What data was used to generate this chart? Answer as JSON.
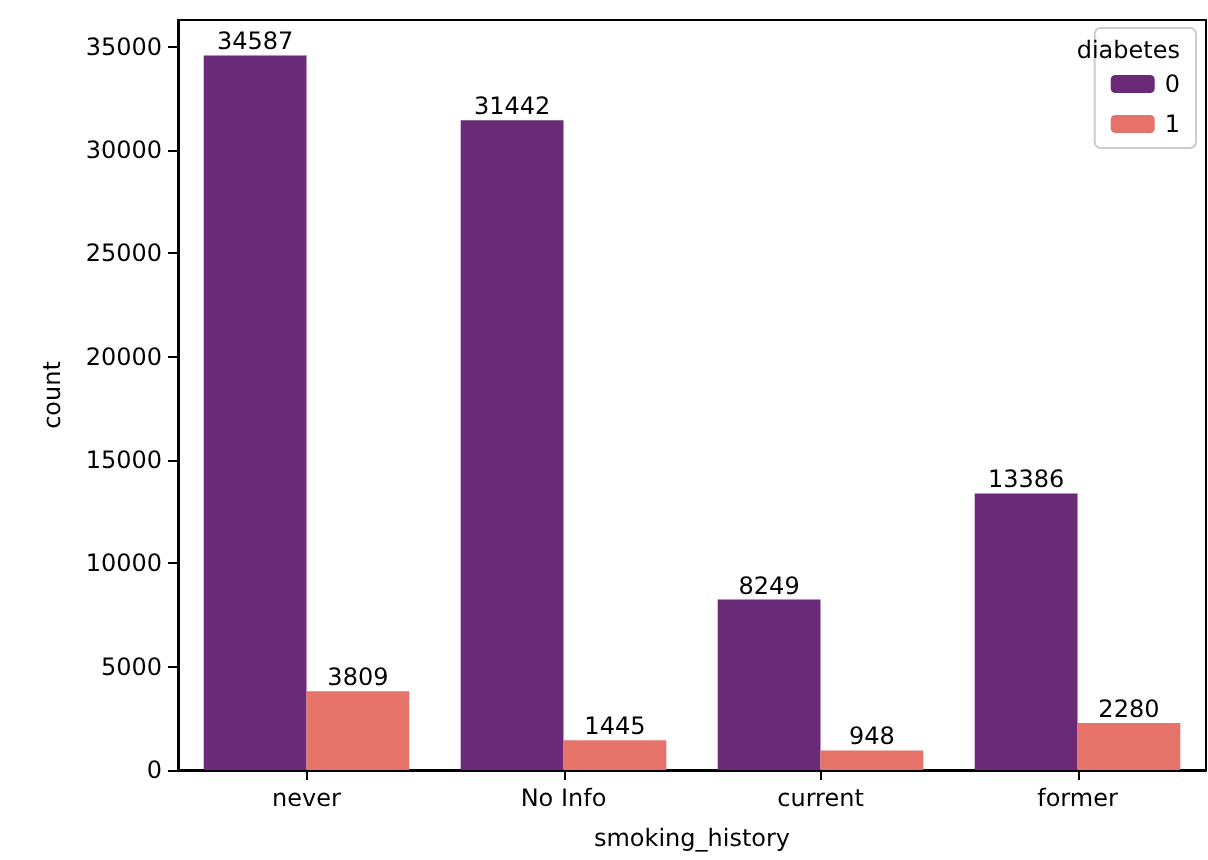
{
  "chart_data": {
    "type": "bar",
    "xlabel": "smoking_history",
    "ylabel": "count",
    "legend_title": "diabetes",
    "categories": [
      "never",
      "No Info",
      "current",
      "former"
    ],
    "series": [
      {
        "name": "0",
        "color": "#6a2a78",
        "values": [
          34587,
          31442,
          8249,
          13386
        ]
      },
      {
        "name": "1",
        "color": "#e6736a",
        "values": [
          3809,
          1445,
          948,
          2280
        ]
      }
    ],
    "ylim": [
      0,
      36300
    ],
    "yticks": [
      0,
      5000,
      10000,
      15000,
      20000,
      25000,
      30000,
      35000
    ],
    "grid": false,
    "legend": "top right",
    "data_labels": true
  }
}
